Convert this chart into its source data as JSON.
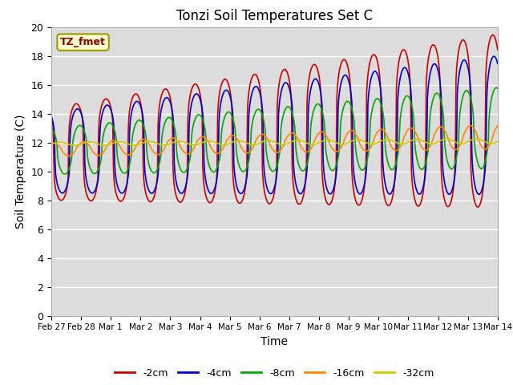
{
  "title": "Tonzi Soil Temperatures Set C",
  "xlabel": "Time",
  "ylabel": "Soil Temperature (C)",
  "ylim": [
    0,
    20
  ],
  "yticks": [
    0,
    2,
    4,
    6,
    8,
    10,
    12,
    14,
    16,
    18,
    20
  ],
  "x_labels": [
    "Feb 27",
    "Feb 28",
    "Mar 1",
    "Mar 2",
    "Mar 3",
    "Mar 4",
    "Mar 5",
    "Mar 6",
    "Mar 7",
    "Mar 8",
    "Mar 9",
    "Mar 10",
    "Mar 11",
    "Mar 12",
    "Mar 13",
    "Mar 14"
  ],
  "colors": {
    "-2cm": "#cc0000",
    "-4cm": "#0000cc",
    "-8cm": "#00aa00",
    "-16cm": "#ff8800",
    "-32cm": "#cccc00"
  },
  "annotation_label": "TZ_fmet",
  "bg_color": "#dcdcdc",
  "title_fontsize": 12,
  "n_days": 15,
  "pts_per_day": 48,
  "depths": [
    2,
    4,
    8,
    16,
    32
  ],
  "mean_start": [
    11.2,
    11.3,
    11.4,
    11.5,
    11.9
  ],
  "mean_end": [
    13.5,
    13.2,
    13.0,
    12.4,
    12.1
  ],
  "amp_start": [
    3.2,
    2.8,
    1.6,
    0.45,
    0.12
  ],
  "amp_end": [
    6.0,
    4.8,
    2.8,
    0.85,
    0.18
  ],
  "phase_lag_days": [
    0.0,
    0.04,
    0.12,
    0.25,
    0.45
  ],
  "sharpness": [
    3.5,
    3.0,
    2.0,
    1.2,
    1.0
  ]
}
